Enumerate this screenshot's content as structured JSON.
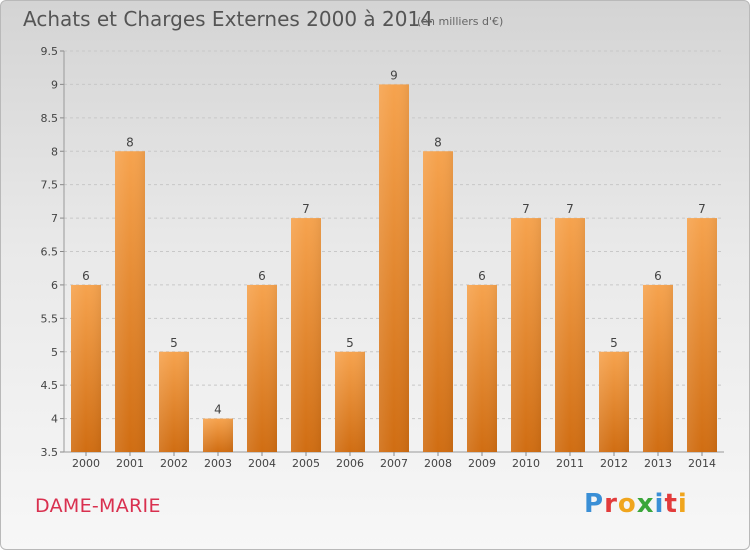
{
  "header": {
    "title": "Achats et Charges Externes 2000 à 2014",
    "unit": "(en milliers d'€)"
  },
  "footer": {
    "place": "DAME-MARIE",
    "logo": "Proxiti"
  },
  "colors": {
    "bar_top": "#f6a34e",
    "bar_bottom": "#d06d12",
    "grid": "#c8c8c8",
    "place": "#d9304f"
  },
  "chart_data": {
    "type": "bar",
    "title": "Achats et Charges Externes 2000 à 2014",
    "xlabel": "",
    "ylabel": "",
    "categories": [
      "2000",
      "2001",
      "2002",
      "2003",
      "2004",
      "2005",
      "2006",
      "2007",
      "2008",
      "2009",
      "2010",
      "2011",
      "2012",
      "2013",
      "2014"
    ],
    "values": [
      6,
      8,
      5,
      4,
      6,
      7,
      5,
      9,
      8,
      6,
      7,
      7,
      5,
      6,
      7
    ],
    "ylim": [
      3.5,
      9.5
    ],
    "yticks": [
      "3.5",
      "4",
      "4.5",
      "5",
      "5.5",
      "6",
      "6.5",
      "7",
      "7.5",
      "8",
      "8.5",
      "9",
      "9.5"
    ],
    "grid": true
  }
}
